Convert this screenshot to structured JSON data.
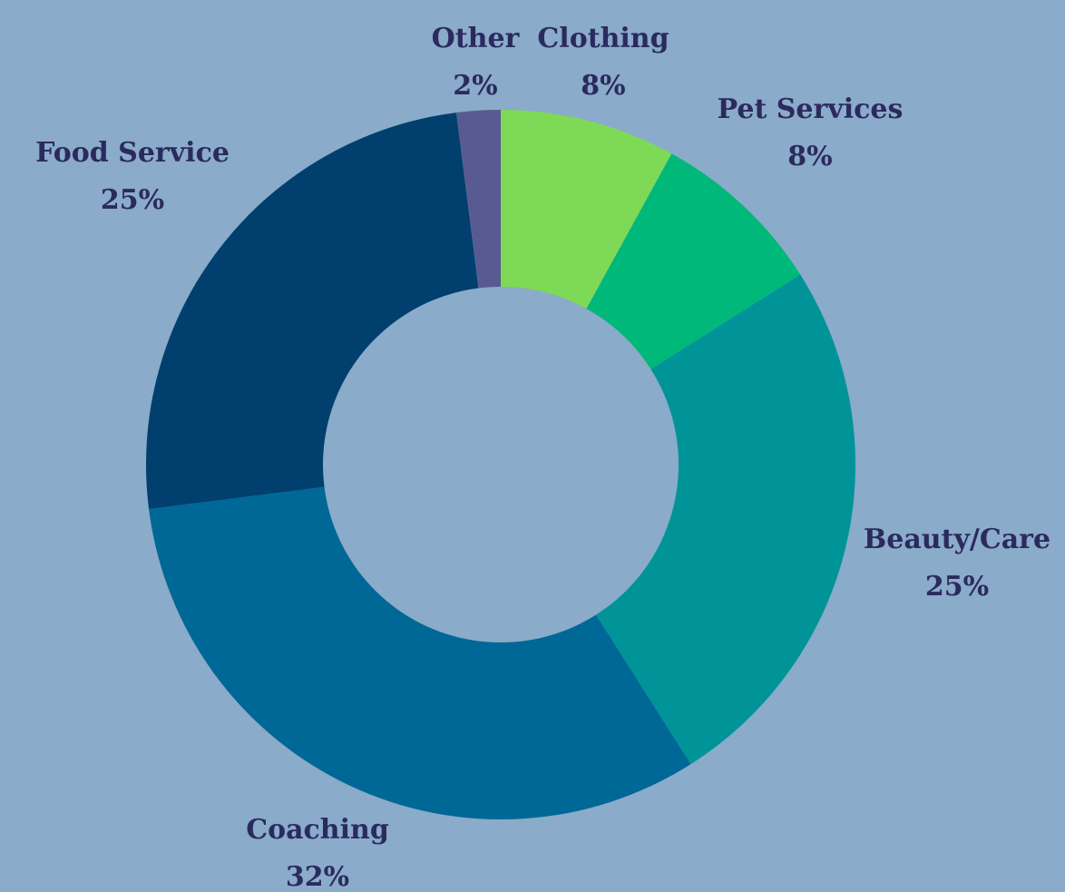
{
  "chart_data": {
    "type": "donut",
    "categories": [
      "Clothing",
      "Pet Services",
      "Beauty/Care",
      "Coaching",
      "Food Service",
      "Other"
    ],
    "values": [
      8,
      8,
      25,
      32,
      25,
      2
    ],
    "value_labels": [
      "8%",
      "8%",
      "25%",
      "32%",
      "25%",
      "2%"
    ],
    "colors": [
      "#7ed957",
      "#00b87a",
      "#009499",
      "#006896",
      "#003f6e",
      "#585b91"
    ]
  }
}
